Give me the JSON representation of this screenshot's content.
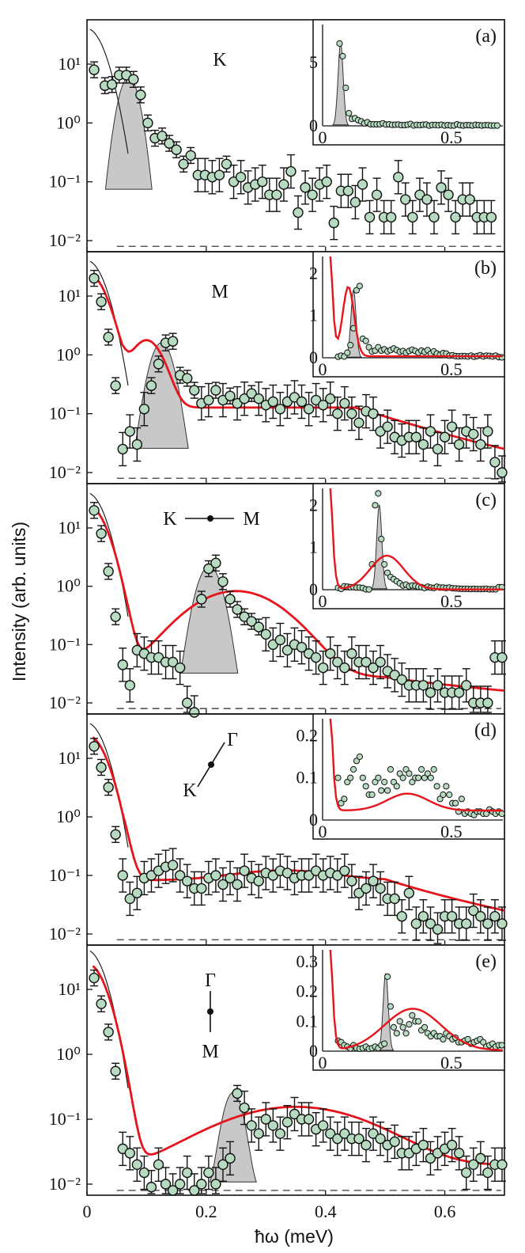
{
  "figure": {
    "ylabel": "Intensity (arb. units)",
    "xlabel": "ħω (meV)",
    "x_ticks": [
      "0",
      "0.2",
      "0.4",
      "0.6"
    ],
    "y_ticks": [
      "10⁻²",
      "10⁻¹",
      "10⁰",
      "10¹"
    ]
  },
  "colors": {
    "data_fill": "#b7dbc1",
    "fit": "#e8141c",
    "peak_fill": "#c8c8c8",
    "axis": "#111111"
  },
  "chart_data": [
    {
      "type": "scatter",
      "panel": "(a)",
      "label": "K",
      "yscale": "log",
      "xlim": [
        0,
        0.7
      ],
      "ylim": [
        0.006,
        40
      ],
      "points": [
        [
          0.012,
          8
        ],
        [
          0.03,
          4.3
        ],
        [
          0.042,
          4.5
        ],
        [
          0.054,
          6.5
        ],
        [
          0.066,
          6.5
        ],
        [
          0.078,
          5.5
        ],
        [
          0.09,
          3
        ],
        [
          0.102,
          1
        ],
        [
          0.114,
          0.55
        ],
        [
          0.126,
          0.6
        ],
        [
          0.138,
          0.45
        ],
        [
          0.15,
          0.35
        ],
        [
          0.162,
          0.2
        ],
        [
          0.174,
          0.28
        ],
        [
          0.186,
          0.13
        ],
        [
          0.198,
          0.13
        ],
        [
          0.21,
          0.12
        ],
        [
          0.222,
          0.13
        ],
        [
          0.234,
          0.2
        ],
        [
          0.246,
          0.1
        ],
        [
          0.258,
          0.12
        ],
        [
          0.27,
          0.08
        ],
        [
          0.282,
          0.09
        ],
        [
          0.294,
          0.1
        ],
        [
          0.306,
          0.06
        ],
        [
          0.318,
          0.06
        ],
        [
          0.33,
          0.09
        ],
        [
          0.342,
          0.15
        ],
        [
          0.354,
          0.03
        ],
        [
          0.366,
          0.08
        ],
        [
          0.378,
          0.06
        ],
        [
          0.39,
          0.09
        ],
        [
          0.402,
          0.1
        ],
        [
          0.414,
          0.02
        ],
        [
          0.426,
          0.07
        ],
        [
          0.438,
          0.07
        ],
        [
          0.45,
          0.045
        ],
        [
          0.462,
          0.09
        ],
        [
          0.474,
          0.025
        ],
        [
          0.486,
          0.06
        ],
        [
          0.498,
          0.025
        ],
        [
          0.51,
          0.025
        ],
        [
          0.522,
          0.12
        ],
        [
          0.534,
          0.05
        ],
        [
          0.546,
          0.025
        ],
        [
          0.558,
          0.06
        ],
        [
          0.57,
          0.05
        ],
        [
          0.582,
          0.025
        ],
        [
          0.594,
          0.08
        ],
        [
          0.606,
          0.06
        ],
        [
          0.618,
          0.025
        ],
        [
          0.63,
          0.05
        ],
        [
          0.642,
          0.05
        ],
        [
          0.654,
          0.025
        ],
        [
          0.666,
          0.025
        ],
        [
          0.678,
          0.025
        ]
      ],
      "peak": {
        "center": 0.07,
        "sigma": 0.013,
        "height": 6
      },
      "inset": {
        "label": "(a)",
        "ylim": [
          0,
          8
        ],
        "yticks": [
          "5",
          "0"
        ],
        "xticks": [
          "0",
          "0.5"
        ],
        "peak": {
          "center": 0.07,
          "height": 6.5
        }
      }
    },
    {
      "type": "scatter",
      "panel": "(b)",
      "label": "M",
      "yscale": "log",
      "xlim": [
        0,
        0.7
      ],
      "ylim": [
        0.006,
        40
      ],
      "points": [
        [
          0.012,
          20
        ],
        [
          0.024,
          8
        ],
        [
          0.036,
          2
        ],
        [
          0.048,
          0.3
        ],
        [
          0.06,
          0.025
        ],
        [
          0.072,
          0.05
        ],
        [
          0.084,
          0.03
        ],
        [
          0.096,
          0.12
        ],
        [
          0.108,
          0.3
        ],
        [
          0.12,
          0.7
        ],
        [
          0.132,
          1.6
        ],
        [
          0.144,
          1.7
        ],
        [
          0.156,
          0.45
        ],
        [
          0.168,
          0.4
        ],
        [
          0.18,
          0.25
        ],
        [
          0.192,
          0.15
        ],
        [
          0.204,
          0.17
        ],
        [
          0.216,
          0.25
        ],
        [
          0.228,
          0.17
        ],
        [
          0.24,
          0.2
        ],
        [
          0.252,
          0.15
        ],
        [
          0.264,
          0.18
        ],
        [
          0.276,
          0.22
        ],
        [
          0.288,
          0.18
        ],
        [
          0.3,
          0.14
        ],
        [
          0.312,
          0.16
        ],
        [
          0.324,
          0.12
        ],
        [
          0.336,
          0.16
        ],
        [
          0.348,
          0.19
        ],
        [
          0.36,
          0.16
        ],
        [
          0.372,
          0.12
        ],
        [
          0.384,
          0.17
        ],
        [
          0.396,
          0.14
        ],
        [
          0.408,
          0.18
        ],
        [
          0.42,
          0.1
        ],
        [
          0.432,
          0.15
        ],
        [
          0.444,
          0.1
        ],
        [
          0.456,
          0.07
        ],
        [
          0.468,
          0.11
        ],
        [
          0.48,
          0.1
        ],
        [
          0.492,
          0.05
        ],
        [
          0.504,
          0.06
        ],
        [
          0.516,
          0.04
        ],
        [
          0.528,
          0.035
        ],
        [
          0.54,
          0.04
        ],
        [
          0.552,
          0.04
        ],
        [
          0.564,
          0.03
        ],
        [
          0.576,
          0.05
        ],
        [
          0.588,
          0.025
        ],
        [
          0.6,
          0.04
        ],
        [
          0.612,
          0.06
        ],
        [
          0.624,
          0.03
        ],
        [
          0.636,
          0.05
        ],
        [
          0.648,
          0.045
        ],
        [
          0.66,
          0.03
        ],
        [
          0.672,
          0.05
        ],
        [
          0.684,
          0.015
        ],
        [
          0.696,
          0.01
        ]
      ],
      "peak": {
        "center": 0.125,
        "sigma": 0.015,
        "height": 1.6
      },
      "fit": {
        "quasi_center": 0.1,
        "quasi_width": 0.022,
        "quasi_height": 1.65,
        "cont": 0.12,
        "cont_end": 0.45,
        "cont_tail": 0.018
      },
      "inset": {
        "label": "(b)",
        "ylim": [
          0,
          2.4
        ],
        "yticks": [
          "2",
          "1",
          "0"
        ],
        "xticks": [
          "0",
          "0.5"
        ],
        "peak": {
          "center": 0.12,
          "height": 1.6
        }
      }
    },
    {
      "type": "scatter",
      "panel": "(c)",
      "label": "K–M",
      "yscale": "log",
      "xlim": [
        0,
        0.7
      ],
      "ylim": [
        0.006,
        40
      ],
      "points": [
        [
          0.012,
          20
        ],
        [
          0.024,
          8
        ],
        [
          0.036,
          1.8
        ],
        [
          0.048,
          0.3
        ],
        [
          0.06,
          0.045
        ],
        [
          0.072,
          0.02
        ],
        [
          0.084,
          0.08
        ],
        [
          0.096,
          0.07
        ],
        [
          0.108,
          0.06
        ],
        [
          0.12,
          0.06
        ],
        [
          0.132,
          0.05
        ],
        [
          0.144,
          0.05
        ],
        [
          0.156,
          0.04
        ],
        [
          0.168,
          0.01
        ],
        [
          0.18,
          0.006
        ],
        [
          0.192,
          0.6
        ],
        [
          0.204,
          2.0
        ],
        [
          0.216,
          2.5
        ],
        [
          0.228,
          1.2
        ],
        [
          0.24,
          0.6
        ],
        [
          0.252,
          0.4
        ],
        [
          0.264,
          0.3
        ],
        [
          0.276,
          0.25
        ],
        [
          0.288,
          0.2
        ],
        [
          0.3,
          0.15
        ],
        [
          0.312,
          0.1
        ],
        [
          0.324,
          0.12
        ],
        [
          0.336,
          0.08
        ],
        [
          0.348,
          0.1
        ],
        [
          0.36,
          0.09
        ],
        [
          0.372,
          0.07
        ],
        [
          0.384,
          0.06
        ],
        [
          0.396,
          0.04
        ],
        [
          0.408,
          0.07
        ],
        [
          0.42,
          0.05
        ],
        [
          0.432,
          0.04
        ],
        [
          0.444,
          0.07
        ],
        [
          0.456,
          0.05
        ],
        [
          0.468,
          0.05
        ],
        [
          0.48,
          0.04
        ],
        [
          0.492,
          0.05
        ],
        [
          0.504,
          0.035
        ],
        [
          0.516,
          0.03
        ],
        [
          0.528,
          0.025
        ],
        [
          0.54,
          0.02
        ],
        [
          0.552,
          0.02
        ],
        [
          0.564,
          0.02
        ],
        [
          0.576,
          0.015
        ],
        [
          0.588,
          0.02
        ],
        [
          0.6,
          0.015
        ],
        [
          0.612,
          0.015
        ],
        [
          0.624,
          0.015
        ],
        [
          0.636,
          0.02
        ],
        [
          0.648,
          0.01
        ],
        [
          0.66,
          0.01
        ],
        [
          0.672,
          0.01
        ],
        [
          0.684,
          0.06
        ],
        [
          0.696,
          0.06
        ]
      ],
      "peak": {
        "center": 0.205,
        "sigma": 0.016,
        "height": 2.2
      },
      "fit": {
        "quasi_center": 0.25,
        "quasi_width": 0.065,
        "quasi_height": 0.8,
        "cont": 0.02,
        "cont_end": 0.5,
        "cont_tail": 0.009
      },
      "inset": {
        "label": "(c)",
        "ylim": [
          0,
          2.4
        ],
        "yticks": [
          "2",
          "1",
          "0"
        ],
        "xticks": [
          "0",
          "0.5"
        ],
        "peak": {
          "center": 0.22,
          "height": 2.0
        }
      }
    },
    {
      "type": "scatter",
      "panel": "(d)",
      "label": "Γ–K",
      "yscale": "log",
      "xlim": [
        0,
        0.7
      ],
      "ylim": [
        0.006,
        40
      ],
      "points": [
        [
          0.012,
          16
        ],
        [
          0.024,
          7
        ],
        [
          0.036,
          3.2
        ],
        [
          0.048,
          0.5
        ],
        [
          0.06,
          0.1
        ],
        [
          0.072,
          0.04
        ],
        [
          0.084,
          0.05
        ],
        [
          0.096,
          0.09
        ],
        [
          0.108,
          0.1
        ],
        [
          0.12,
          0.12
        ],
        [
          0.132,
          0.14
        ],
        [
          0.144,
          0.15
        ],
        [
          0.156,
          0.1
        ],
        [
          0.168,
          0.08
        ],
        [
          0.18,
          0.06
        ],
        [
          0.192,
          0.06
        ],
        [
          0.204,
          0.09
        ],
        [
          0.216,
          0.1
        ],
        [
          0.228,
          0.07
        ],
        [
          0.24,
          0.09
        ],
        [
          0.252,
          0.07
        ],
        [
          0.264,
          0.12
        ],
        [
          0.276,
          0.09
        ],
        [
          0.288,
          0.08
        ],
        [
          0.3,
          0.11
        ],
        [
          0.312,
          0.1
        ],
        [
          0.324,
          0.12
        ],
        [
          0.336,
          0.11
        ],
        [
          0.348,
          0.09
        ],
        [
          0.36,
          0.1
        ],
        [
          0.372,
          0.1
        ],
        [
          0.384,
          0.12
        ],
        [
          0.396,
          0.1
        ],
        [
          0.408,
          0.11
        ],
        [
          0.42,
          0.1
        ],
        [
          0.432,
          0.12
        ],
        [
          0.444,
          0.08
        ],
        [
          0.456,
          0.05
        ],
        [
          0.468,
          0.06
        ],
        [
          0.48,
          0.08
        ],
        [
          0.492,
          0.06
        ],
        [
          0.504,
          0.04
        ],
        [
          0.516,
          0.04
        ],
        [
          0.528,
          0.02
        ],
        [
          0.54,
          0.05
        ],
        [
          0.552,
          0.015
        ],
        [
          0.564,
          0.02
        ],
        [
          0.576,
          0.015
        ],
        [
          0.588,
          0.012
        ],
        [
          0.6,
          0.02
        ],
        [
          0.612,
          0.02
        ],
        [
          0.624,
          0.015
        ],
        [
          0.636,
          0.015
        ],
        [
          0.648,
          0.025
        ],
        [
          0.66,
          0.02
        ],
        [
          0.672,
          0.015
        ],
        [
          0.684,
          0.02
        ],
        [
          0.696,
          0.015
        ]
      ],
      "fit": {
        "quasi_center": 0.33,
        "quasi_width": 0.08,
        "quasi_height": 0.04,
        "cont": 0.075,
        "cont_end": 0.5,
        "cont_tail": 0.018
      },
      "inset": {
        "label": "(d)",
        "ylim": [
          0,
          0.24
        ],
        "yticks": [
          "0.2",
          "0.1",
          "0"
        ],
        "xticks": [
          "0",
          "0.5"
        ]
      }
    },
    {
      "type": "scatter",
      "panel": "(e)",
      "label": "Γ–M",
      "yscale": "log",
      "xlim": [
        0,
        0.7
      ],
      "ylim": [
        0.006,
        40
      ],
      "points": [
        [
          0.012,
          15
        ],
        [
          0.024,
          6
        ],
        [
          0.036,
          2.2
        ],
        [
          0.048,
          0.55
        ],
        [
          0.06,
          0.035
        ],
        [
          0.072,
          0.03
        ],
        [
          0.084,
          0.02
        ],
        [
          0.096,
          0.015
        ],
        [
          0.108,
          0.009
        ],
        [
          0.12,
          0.02
        ],
        [
          0.132,
          0.01
        ],
        [
          0.144,
          0.008
        ],
        [
          0.156,
          0.01
        ],
        [
          0.168,
          0.015
        ],
        [
          0.18,
          0.008
        ],
        [
          0.192,
          0.01
        ],
        [
          0.204,
          0.015
        ],
        [
          0.216,
          0.01
        ],
        [
          0.228,
          0.02
        ],
        [
          0.24,
          0.025
        ],
        [
          0.252,
          0.25
        ],
        [
          0.264,
          0.15
        ],
        [
          0.276,
          0.08
        ],
        [
          0.288,
          0.06
        ],
        [
          0.3,
          0.1
        ],
        [
          0.312,
          0.08
        ],
        [
          0.324,
          0.06
        ],
        [
          0.336,
          0.09
        ],
        [
          0.348,
          0.12
        ],
        [
          0.36,
          0.1
        ],
        [
          0.372,
          0.1
        ],
        [
          0.384,
          0.07
        ],
        [
          0.396,
          0.08
        ],
        [
          0.408,
          0.06
        ],
        [
          0.42,
          0.05
        ],
        [
          0.432,
          0.06
        ],
        [
          0.444,
          0.05
        ],
        [
          0.456,
          0.05
        ],
        [
          0.468,
          0.04
        ],
        [
          0.48,
          0.06
        ],
        [
          0.492,
          0.05
        ],
        [
          0.504,
          0.04
        ],
        [
          0.516,
          0.045
        ],
        [
          0.528,
          0.03
        ],
        [
          0.54,
          0.03
        ],
        [
          0.552,
          0.035
        ],
        [
          0.564,
          0.04
        ],
        [
          0.576,
          0.025
        ],
        [
          0.588,
          0.03
        ],
        [
          0.6,
          0.035
        ],
        [
          0.612,
          0.04
        ],
        [
          0.624,
          0.03
        ],
        [
          0.636,
          0.015
        ],
        [
          0.648,
          0.02
        ],
        [
          0.66,
          0.025
        ],
        [
          0.672,
          0.015
        ],
        [
          0.684,
          0.02
        ],
        [
          0.696,
          0.02
        ]
      ],
      "peak": {
        "center": 0.245,
        "sigma": 0.013,
        "height": 0.25
      },
      "fit": {
        "quasi_center": 0.35,
        "quasi_width": 0.11,
        "quasi_height": 0.14,
        "cont": 0.008,
        "cont_end": 0.5,
        "cont_tail": 0.012
      },
      "inset": {
        "label": "(e)",
        "ylim": [
          0,
          0.34
        ],
        "yticks": [
          "0.3",
          "0.2",
          "0.1",
          "0"
        ],
        "xticks": [
          "0",
          "0.5"
        ],
        "peak": {
          "center": 0.245,
          "height": 0.26
        }
      }
    }
  ]
}
